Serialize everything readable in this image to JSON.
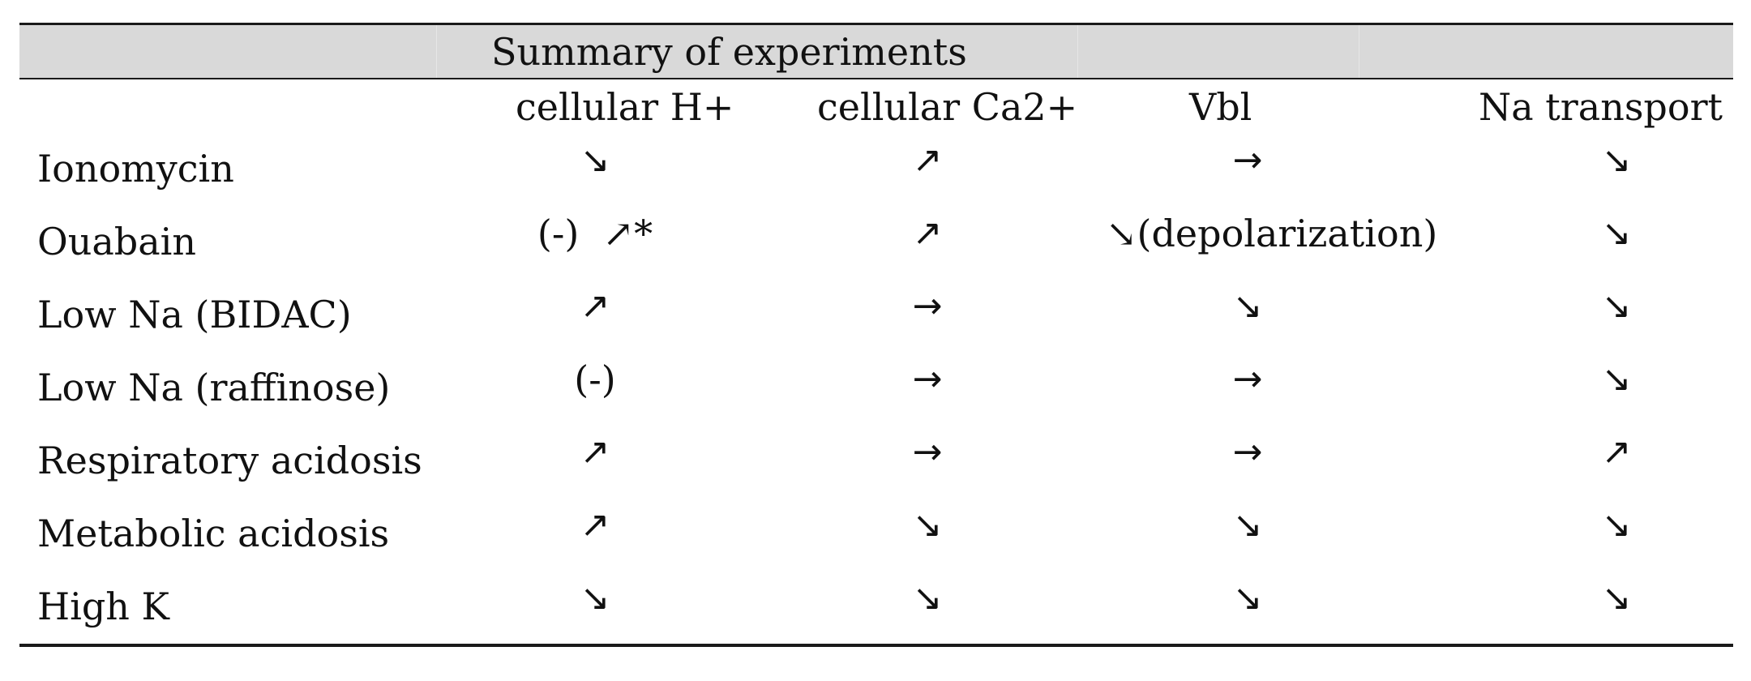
{
  "table": {
    "title": "Summary of experiments",
    "columns": [
      "cellular H+",
      "cellular Ca2+",
      "Vbl",
      "Na transport"
    ],
    "rows": [
      {
        "label": "Ionomycin",
        "cells": [
          "↘",
          "↗",
          "→",
          "↘"
        ]
      },
      {
        "label": "Ouabain",
        "cells": [
          "(-)  ↗*",
          "↗",
          "↘(depolarization)",
          "↘"
        ]
      },
      {
        "label": "Low Na (BIDAC)",
        "cells": [
          "↗",
          "→",
          "↘",
          "↘"
        ]
      },
      {
        "label": "Low Na (raffinose)",
        "cells": [
          "(-)",
          "→",
          "→",
          "↘"
        ]
      },
      {
        "label": "Respiratory acidosis",
        "cells": [
          "↗",
          "→",
          "→",
          "↗"
        ]
      },
      {
        "label": "Metabolic acidosis",
        "cells": [
          "↗",
          "↘",
          "↘",
          "↘"
        ]
      },
      {
        "label": "High K",
        "cells": [
          "↘",
          "↘",
          "↘",
          "↘"
        ]
      }
    ]
  },
  "colors": {
    "title_band": "#d9d9d9",
    "rules": "#1a1a1a",
    "text": "#111111"
  }
}
